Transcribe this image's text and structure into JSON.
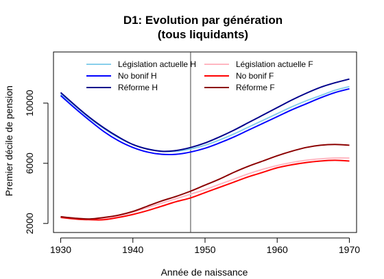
{
  "chart_data": {
    "type": "line",
    "title": [
      "D1: Evolution par génération",
      "(tous liquidants)"
    ],
    "xlabel": "Année de naissance",
    "ylabel": "Premier décile de pension",
    "xlim": [
      1929,
      1971
    ],
    "ylim": [
      1400,
      13400
    ],
    "x_ticks": [
      1930,
      1940,
      1950,
      1960,
      1970
    ],
    "y_ticks": [
      2000,
      6000,
      10000
    ],
    "vline_x": 1948,
    "legend_position": "top",
    "x": [
      1930,
      1932,
      1934,
      1936,
      1938,
      1940,
      1942,
      1944,
      1946,
      1948,
      1950,
      1952,
      1954,
      1956,
      1958,
      1960,
      1962,
      1964,
      1966,
      1968,
      1970
    ],
    "series": [
      {
        "name": "Législation actuelle H",
        "color": "#87ceeb",
        "values": [
          10600,
          9800,
          9000,
          8300,
          7700,
          7250,
          6950,
          6800,
          6800,
          6950,
          7200,
          7550,
          7950,
          8400,
          8850,
          9300,
          9750,
          10150,
          10500,
          10850,
          11100
        ]
      },
      {
        "name": "No bonif H",
        "color": "#0000ff",
        "values": [
          10500,
          9650,
          8850,
          8100,
          7500,
          7050,
          6750,
          6600,
          6600,
          6750,
          7000,
          7350,
          7750,
          8200,
          8650,
          9100,
          9550,
          9950,
          10350,
          10700,
          10950
        ]
      },
      {
        "name": "Réforme H",
        "color": "#00008b",
        "values": [
          10700,
          9850,
          9050,
          8350,
          7750,
          7250,
          6950,
          6800,
          6850,
          7050,
          7350,
          7750,
          8200,
          8700,
          9200,
          9700,
          10200,
          10650,
          11050,
          11350,
          11600
        ]
      },
      {
        "name": "Législation actuelle F",
        "color": "#ffb6c1",
        "values": [
          2450,
          2350,
          2300,
          2350,
          2500,
          2750,
          3050,
          3350,
          3650,
          3950,
          4250,
          4600,
          4950,
          5300,
          5600,
          5850,
          6050,
          6200,
          6300,
          6350,
          6350
        ]
      },
      {
        "name": "No bonif F",
        "color": "#ff0000",
        "values": [
          2400,
          2300,
          2250,
          2250,
          2400,
          2600,
          2850,
          3150,
          3450,
          3700,
          4050,
          4400,
          4750,
          5100,
          5400,
          5700,
          5900,
          6050,
          6150,
          6200,
          6150
        ]
      },
      {
        "name": "Réforme F",
        "color": "#8b0000",
        "values": [
          2450,
          2350,
          2300,
          2400,
          2550,
          2800,
          3150,
          3500,
          3800,
          4150,
          4550,
          4950,
          5400,
          5800,
          6150,
          6500,
          6800,
          7050,
          7200,
          7250,
          7200
        ]
      }
    ]
  }
}
